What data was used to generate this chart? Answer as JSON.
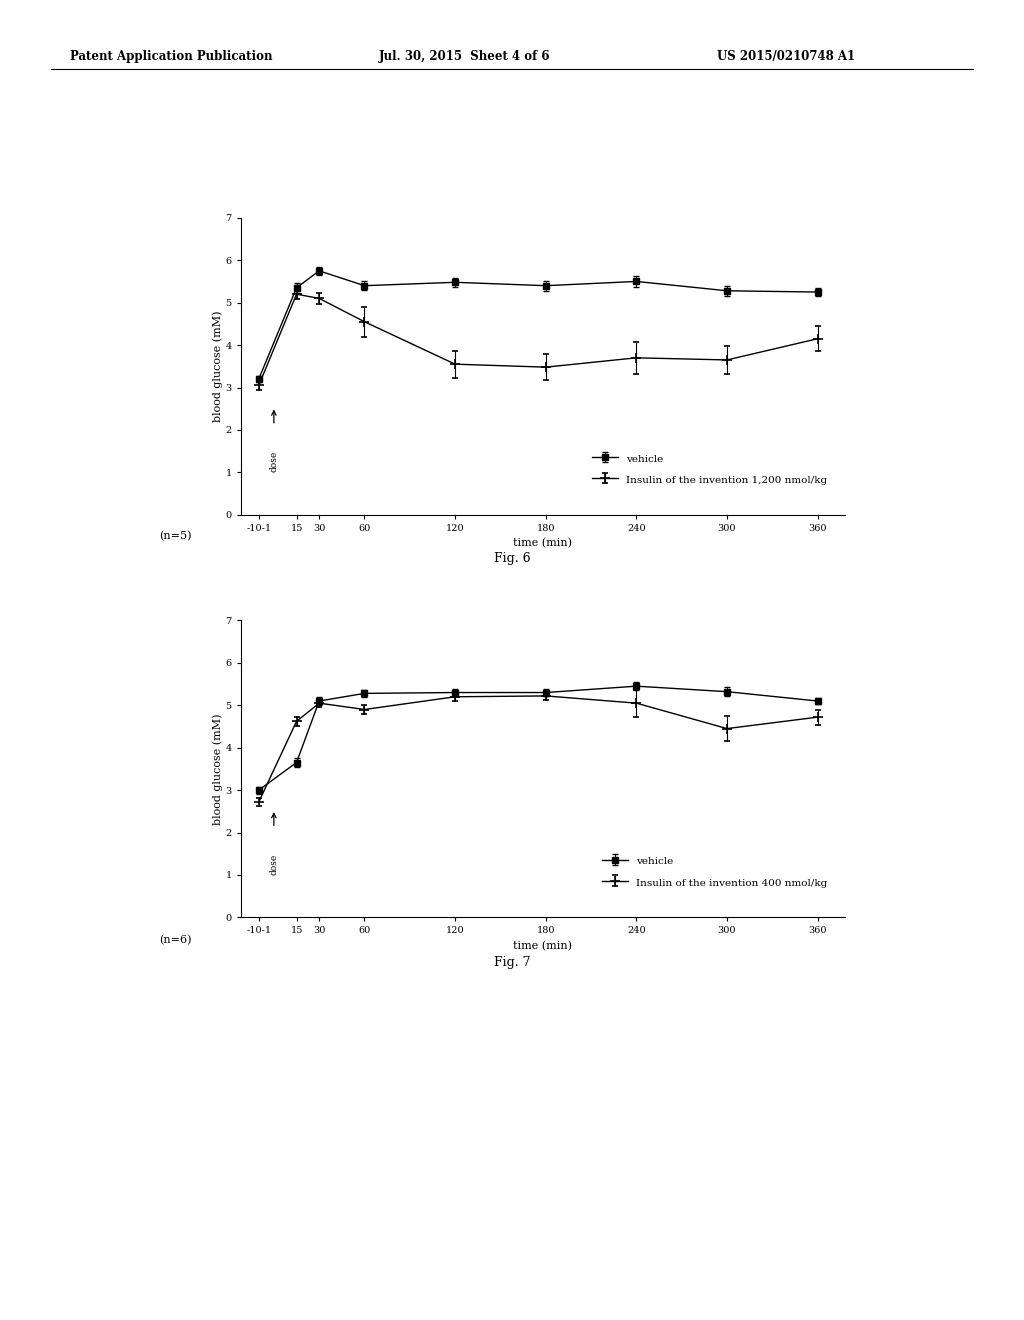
{
  "header_left": "Patent Application Publication",
  "header_mid": "Jul. 30, 2015  Sheet 4 of 6",
  "header_right": "US 2015/0210748 A1",
  "fig6_label": "Fig. 6",
  "fig7_label": "Fig. 7",
  "n_label_fig6": "(n=5)",
  "n_label_fig7": "(n=6)",
  "xlabel": "time (min)",
  "ylabel": "blood glucose (mM)",
  "xtick_labels": [
    "-10-1",
    "15",
    "30",
    "60",
    "120",
    "180",
    "240",
    "300",
    "360"
  ],
  "xtick_positions": [
    -10,
    15,
    30,
    60,
    120,
    180,
    240,
    300,
    360
  ],
  "ylim": [
    0,
    7
  ],
  "yticks": [
    0,
    1,
    2,
    3,
    4,
    5,
    6,
    7
  ],
  "fig6": {
    "vehicle_x": [
      -10,
      15,
      30,
      60,
      120,
      180,
      240,
      300,
      360
    ],
    "vehicle_y": [
      3.2,
      5.35,
      5.75,
      5.4,
      5.48,
      5.4,
      5.5,
      5.28,
      5.25
    ],
    "vehicle_err": [
      0.08,
      0.12,
      0.1,
      0.1,
      0.1,
      0.12,
      0.12,
      0.12,
      0.1
    ],
    "insulin_x": [
      -10,
      15,
      30,
      60,
      120,
      180,
      240,
      300,
      360
    ],
    "insulin_y": [
      3.05,
      5.2,
      5.1,
      4.55,
      3.55,
      3.48,
      3.7,
      3.65,
      4.15
    ],
    "insulin_err": [
      0.1,
      0.12,
      0.12,
      0.35,
      0.32,
      0.3,
      0.38,
      0.32,
      0.3
    ],
    "legend_vehicle": "vehicle",
    "legend_insulin": "Insulin of the invention 1,200 nmol/kg"
  },
  "fig7": {
    "vehicle_x": [
      -10,
      15,
      30,
      60,
      120,
      180,
      240,
      300,
      360
    ],
    "vehicle_y": [
      3.0,
      3.65,
      5.1,
      5.28,
      5.3,
      5.3,
      5.45,
      5.32,
      5.1
    ],
    "vehicle_err": [
      0.08,
      0.1,
      0.1,
      0.08,
      0.08,
      0.08,
      0.1,
      0.1,
      0.08
    ],
    "insulin_x": [
      -10,
      15,
      30,
      60,
      120,
      180,
      240,
      300,
      360
    ],
    "insulin_y": [
      2.72,
      4.62,
      5.05,
      4.9,
      5.2,
      5.22,
      5.05,
      4.45,
      4.72
    ],
    "insulin_err": [
      0.1,
      0.1,
      0.1,
      0.1,
      0.1,
      0.1,
      0.32,
      0.3,
      0.18
    ],
    "legend_vehicle": "vehicle",
    "legend_insulin": "Insulin of the invention 400 nmol/kg"
  },
  "line_color": "#000000",
  "background_color": "#ffffff",
  "marker_vehicle": "s",
  "marker_insulin": "+"
}
